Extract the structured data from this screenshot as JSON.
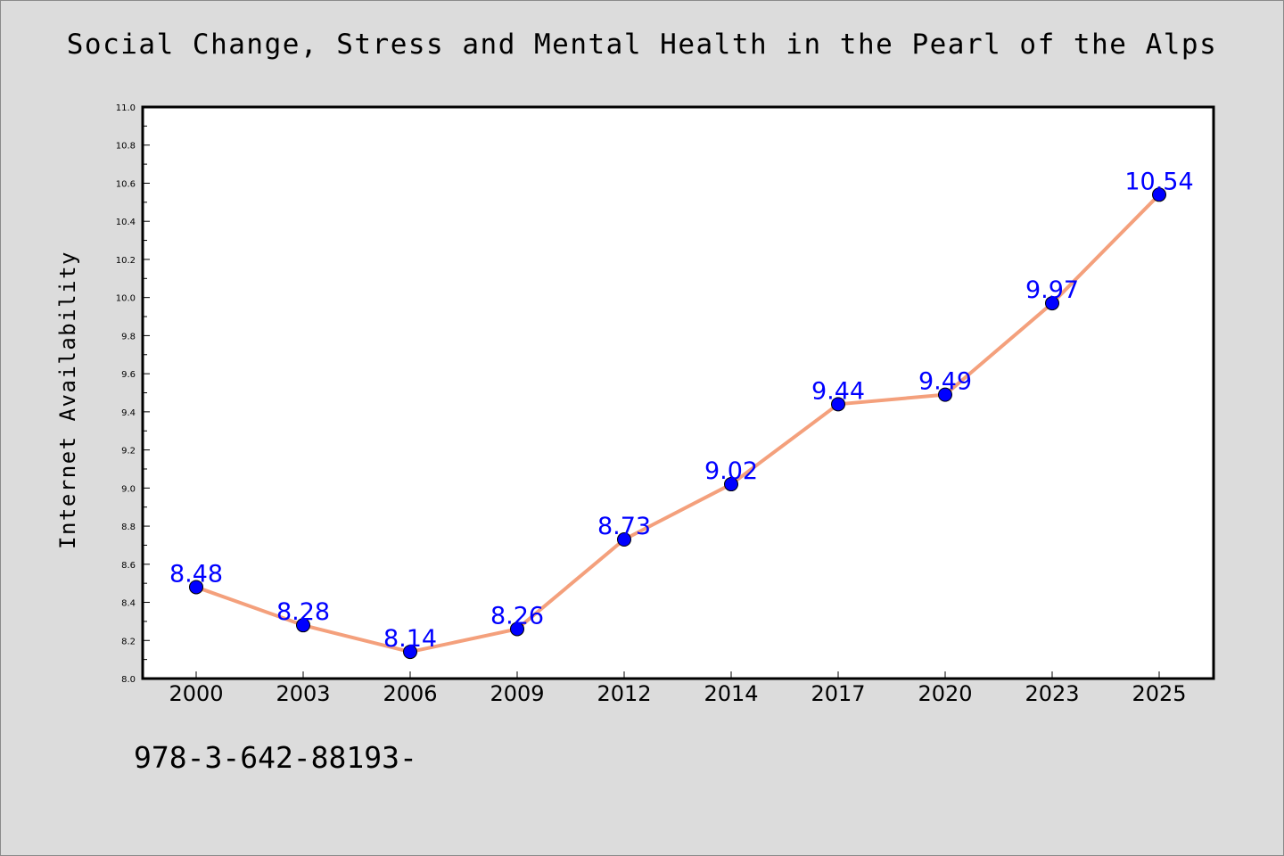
{
  "footnote": "978-3-642-88193-",
  "chart_data": {
    "type": "line",
    "title": "Social Change, Stress and Mental Health in the Pearl of the Alps",
    "xlabel": "",
    "ylabel": "Internet Availability",
    "categories": [
      "2000",
      "2003",
      "2006",
      "2009",
      "2012",
      "2014",
      "2017",
      "2020",
      "2023",
      "2025"
    ],
    "series": [
      {
        "values": [
          8.48,
          8.28,
          8.14,
          8.26,
          8.73,
          9.02,
          9.44,
          9.49,
          9.97,
          10.54
        ]
      }
    ],
    "ylim": [
      8.0,
      11.0
    ],
    "yticks": [
      "8.0",
      "8.2",
      "8.4",
      "8.6",
      "8.8",
      "9.0",
      "9.2",
      "9.4",
      "9.6",
      "9.8",
      "10.0",
      "10.2",
      "10.4",
      "10.6",
      "10.8",
      "11.0"
    ],
    "grid": false,
    "legend": "none",
    "colors": {
      "line": "#f4a07c",
      "marker": "#0000ff",
      "label": "#0000ff",
      "background": "#dcdcdc",
      "plot_background": "#ffffff"
    }
  }
}
